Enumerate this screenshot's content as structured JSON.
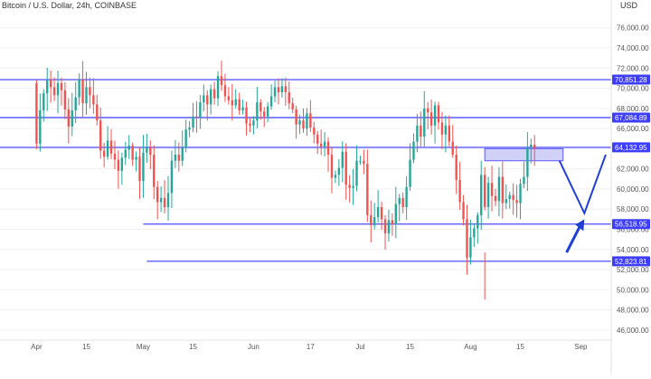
{
  "header": {
    "title": "Bitcoin / U.S. Dollar, 24h, COINBASE",
    "currency": "USD"
  },
  "colors": {
    "up": "#26a69a",
    "down": "#ef5350",
    "level_line": "#5b5bff",
    "level_label_bg": "#3d3dff",
    "zone_fill": "#c9c9f7",
    "arrow": "#1f3fd6",
    "axis_text": "#555555",
    "grid": "#f0f0f0"
  },
  "chart_data": {
    "type": "candlestick",
    "title": "Bitcoin / U.S. Dollar, 24h, COINBASE",
    "y_axis_unit": "USD",
    "ylim": [
      45000,
      77500
    ],
    "y_ticks": [
      "46,000.00",
      "48,000.00",
      "50,000.00",
      "52,000.00",
      "54,000.00",
      "56,000.00",
      "58,000.00",
      "60,000.00",
      "62,000.00",
      "64,000.00",
      "66,000.00",
      "68,000.00",
      "70,000.00",
      "72,000.00",
      "74,000.00",
      "76,000.00"
    ],
    "y_tick_values": [
      46000,
      48000,
      50000,
      52000,
      54000,
      56000,
      58000,
      60000,
      62000,
      64000,
      66000,
      68000,
      70000,
      72000,
      74000,
      76000
    ],
    "x_ticks": [
      {
        "label": "Apr",
        "date": "2024-04-01"
      },
      {
        "label": "15",
        "date": "2024-04-15"
      },
      {
        "label": "May",
        "date": "2024-05-01"
      },
      {
        "label": "15",
        "date": "2024-05-15"
      },
      {
        "label": "Jun",
        "date": "2024-06-01"
      },
      {
        "label": "17",
        "date": "2024-06-17"
      },
      {
        "label": "Jul",
        "date": "2024-07-01"
      },
      {
        "label": "15",
        "date": "2024-07-15"
      },
      {
        "label": "Aug",
        "date": "2024-08-01"
      },
      {
        "label": "15",
        "date": "2024-08-15"
      },
      {
        "label": "Sep",
        "date": "2024-09-01"
      }
    ],
    "x_range": [
      "2024-03-23",
      "2024-09-07"
    ],
    "series_closes": [
      64500,
      67800,
      69500,
      70900,
      70100,
      69300,
      70500,
      69800,
      67900,
      66200,
      67800,
      69100,
      70900,
      68500,
      70100,
      69300,
      68400,
      66800,
      63800,
      63200,
      64800,
      63500,
      62900,
      61800,
      63100,
      63900,
      64300,
      62900,
      63200,
      60800,
      63600,
      64100,
      63400,
      60200,
      58700,
      59100,
      58200,
      59600,
      62800,
      63400,
      62800,
      64100,
      65900,
      66100,
      67200,
      67100,
      68600,
      69300,
      68400,
      69900,
      69000,
      71200,
      70300,
      69200,
      68800,
      68300,
      68900,
      67800,
      68100,
      66500,
      66300,
      66800,
      68600,
      67700,
      67200,
      68200,
      69200,
      70100,
      69600,
      70200,
      69600,
      68500,
      67900,
      66400,
      66800,
      66000,
      67500,
      66100,
      65400,
      64500,
      64200,
      64700,
      63400,
      61100,
      61400,
      62100,
      63700,
      60400,
      60100,
      60300,
      62800,
      62800,
      62500,
      57400,
      56400,
      57200,
      58200,
      57000,
      55600,
      56900,
      56500,
      58500,
      59100,
      58200,
      60200,
      62900,
      64700,
      66300,
      65200,
      68000,
      67600,
      66300,
      68300,
      66600,
      65400,
      66300,
      64700,
      63400,
      60900,
      58700,
      57000,
      53200,
      55200,
      56100,
      57400,
      61400,
      58200,
      60600,
      59300,
      58800,
      61200,
      58600,
      59000,
      59400,
      58900,
      58600,
      60500,
      61200,
      64100,
      64400,
      64000
    ],
    "horizontal_levels": [
      70851.28,
      67084.89,
      64132.95,
      56518.95,
      52823.81
    ],
    "level_labels": [
      "70,851.28",
      "67,084.89",
      "64,132.95",
      "56,518.95",
      "52,823.81"
    ],
    "zone": {
      "from_date": "2024-08-05",
      "to_date": "2024-08-27",
      "low": 62800,
      "high": 64000
    },
    "projection_path": [
      {
        "date": "2024-08-26",
        "value": 62800
      },
      {
        "date": "2024-09-02",
        "value": 57600
      },
      {
        "date": "2024-09-08",
        "value": 63400
      }
    ],
    "arrow": {
      "from": {
        "date": "2024-08-28",
        "value": 53700
      },
      "to": {
        "date": "2024-09-02",
        "value": 57000
      }
    },
    "grid": false
  }
}
